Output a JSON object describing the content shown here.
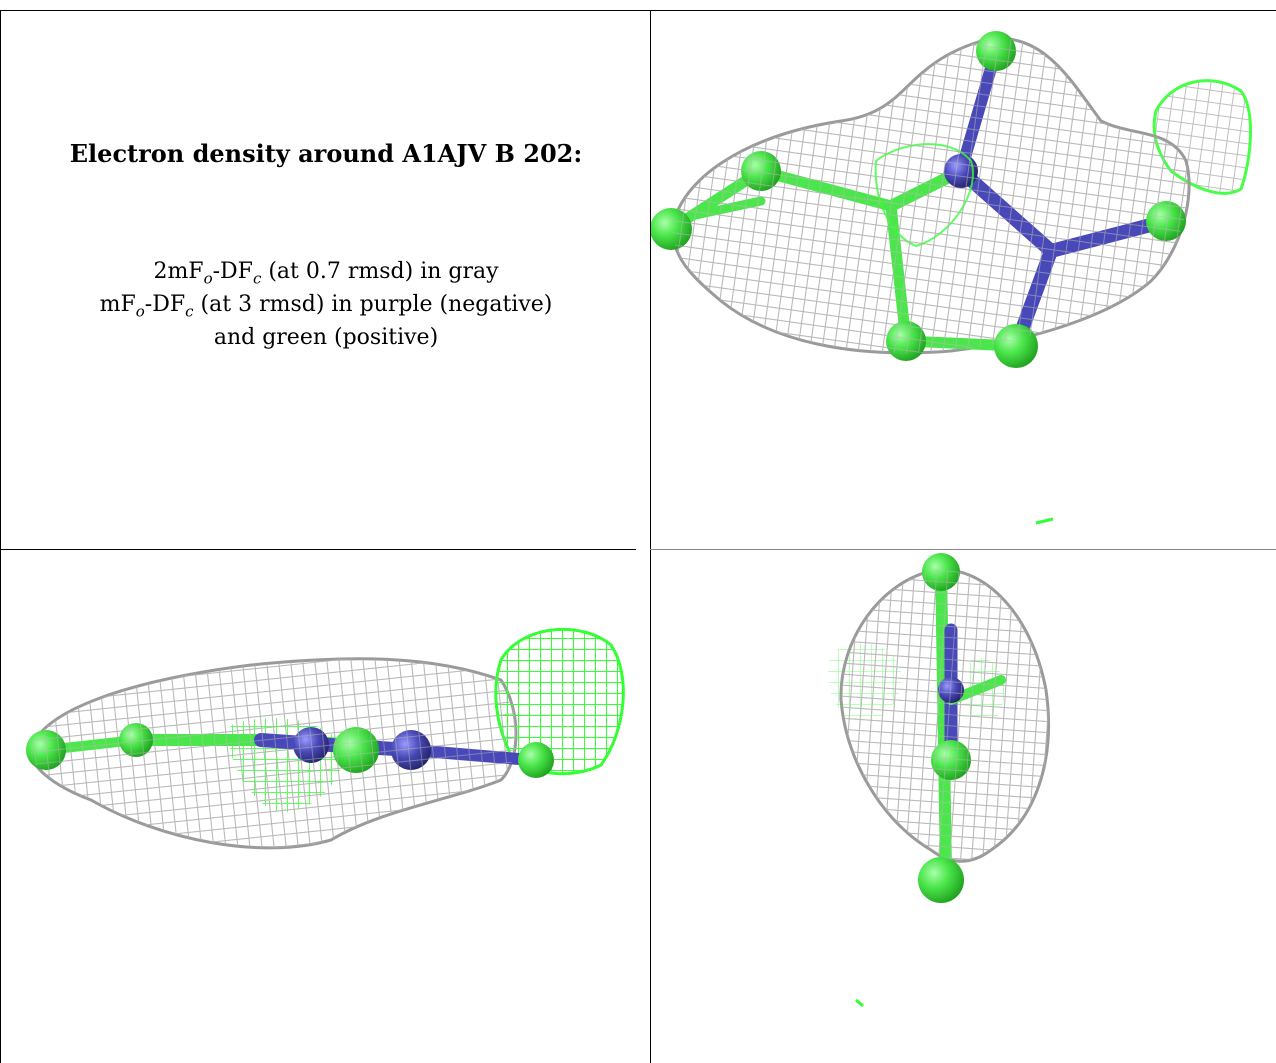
{
  "title": "Electron density around A1AJV B 202:",
  "legend": {
    "line1": {
      "prefix": "2mF",
      "sub1": "o",
      "mid": "-DF",
      "sub2": "c",
      "suffix": " (at 0.7 rmsd) in gray"
    },
    "line2": {
      "prefix": "mF",
      "sub1": "o",
      "mid": "-DF",
      "sub2": "c",
      "suffix": " (at 3 rmsd) in purple (negative)"
    },
    "line3": "and green (positive)"
  },
  "colors": {
    "mesh_gray": "#b9b9b9",
    "positive_green": "#33ff33",
    "atom_green": "#4be64b",
    "bond_blue": "#4848b8"
  },
  "views": [
    {
      "label": "view-top-right"
    },
    {
      "label": "view-bottom-left"
    },
    {
      "label": "view-bottom-right"
    }
  ]
}
